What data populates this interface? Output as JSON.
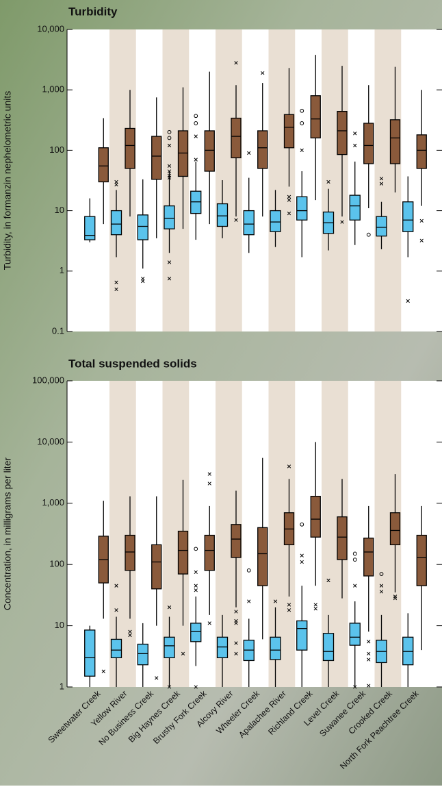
{
  "chart_data": [
    {
      "type": "box",
      "title": "Turbidity",
      "y_label": "Turbidity, in formanzin nephelometric units",
      "log_scale": true,
      "ylim": [
        0.1,
        10000
      ],
      "yticks": [
        0.1,
        1,
        10,
        100,
        {
          "value": 1000,
          "label": "1,000"
        },
        {
          "value": 10000,
          "label": "10,000"
        }
      ],
      "band_color": "#e9dfd3",
      "series": [
        {
          "color": "#5bc3ec",
          "boxes": [
            {
              "low": 3,
              "q1": 3.3,
              "median": 3.9,
              "q3": 8,
              "high": 16
            },
            {
              "low": 1.7,
              "q1": 4,
              "median": 6,
              "q3": 10,
              "high": 22,
              "outliers_x": [
                30,
                27,
                0.65,
                0.5
              ]
            },
            {
              "low": 1.1,
              "q1": 3.3,
              "median": 5.5,
              "q3": 8.5,
              "high": 33,
              "outliers_x": [
                0.75,
                0.68
              ]
            },
            {
              "low": 2,
              "q1": 5,
              "median": 7.5,
              "q3": 12,
              "high": 45,
              "outliers_o": [
                200,
                160
              ],
              "outliers_x": [
                120,
                55,
                45,
                38,
                35,
                1.4,
                0.75
              ]
            },
            {
              "low": 3.3,
              "q1": 9,
              "median": 14,
              "q3": 21,
              "high": 65,
              "outliers_o": [
                370,
                280
              ],
              "outliers_x": [
                170,
                70
              ]
            },
            {
              "low": 3.5,
              "q1": 5.5,
              "median": 8.2,
              "q3": 13,
              "high": 32
            },
            {
              "low": 2,
              "q1": 4,
              "median": 6,
              "q3": 10,
              "high": 35,
              "outliers_x": [
                90
              ]
            },
            {
              "low": 2.5,
              "q1": 4.5,
              "median": 6.5,
              "q3": 10,
              "high": 22
            },
            {
              "low": 1.7,
              "q1": 7,
              "median": 10,
              "q3": 17,
              "high": 45,
              "outliers_o": [
                450,
                280
              ],
              "outliers_x": [
                100
              ]
            },
            {
              "low": 2.2,
              "q1": 4.2,
              "median": 6.3,
              "q3": 9.5,
              "high": 23,
              "outliers_x": [
                30
              ]
            },
            {
              "low": 2.7,
              "q1": 7,
              "median": 12,
              "q3": 18,
              "high": 65,
              "outliers_x": [
                190,
                120
              ]
            },
            {
              "low": 2.3,
              "q1": 3.8,
              "median": 5.3,
              "q3": 8,
              "high": 14,
              "outliers_x": [
                34,
                28
              ]
            },
            {
              "low": 1.7,
              "q1": 4.5,
              "median": 7,
              "q3": 14,
              "high": 37,
              "outliers_x": [
                0.32
              ]
            }
          ]
        },
        {
          "color": "#8a5a3b",
          "boxes": [
            {
              "low": 6,
              "q1": 30,
              "median": 55,
              "q3": 110,
              "high": 340
            },
            {
              "low": 8,
              "q1": 50,
              "median": 120,
              "q3": 230,
              "high": 1000
            },
            {
              "low": 3.5,
              "q1": 33,
              "median": 80,
              "q3": 170,
              "high": 750
            },
            {
              "low": 5,
              "q1": 37,
              "median": 90,
              "q3": 210,
              "high": 1100
            },
            {
              "low": 6,
              "q1": 45,
              "median": 100,
              "q3": 210,
              "high": 2000
            },
            {
              "low": 8,
              "q1": 75,
              "median": 170,
              "q3": 340,
              "high": 1200,
              "outliers_x": [
                2800,
                7
              ]
            },
            {
              "low": 8,
              "q1": 50,
              "median": 110,
              "q3": 210,
              "high": 1300,
              "outliers_x": [
                1900
              ]
            },
            {
              "low": 25,
              "q1": 110,
              "median": 240,
              "q3": 390,
              "high": 2300,
              "outliers_x": [
                17,
                15,
                9
              ]
            },
            {
              "low": 15,
              "q1": 160,
              "median": 330,
              "q3": 800,
              "high": 3800
            },
            {
              "low": 8,
              "q1": 85,
              "median": 210,
              "q3": 440,
              "high": 2500,
              "outliers_x": [
                6.5
              ]
            },
            {
              "low": 11,
              "q1": 60,
              "median": 120,
              "q3": 280,
              "high": 1200,
              "outliers_o": [
                4
              ]
            },
            {
              "low": 20,
              "q1": 60,
              "median": 160,
              "q3": 320,
              "high": 2400
            },
            {
              "low": 12,
              "q1": 50,
              "median": 100,
              "q3": 180,
              "high": 1000,
              "outliers_x": [
                6.8,
                3.2
              ]
            }
          ]
        }
      ]
    },
    {
      "type": "box",
      "title": "Total suspended solids",
      "y_label": "Concentration, in milligrams per liter",
      "log_scale": true,
      "ylim": [
        1,
        100000
      ],
      "yticks": [
        1,
        10,
        100,
        {
          "value": 1000,
          "label": "1,000"
        },
        {
          "value": 10000,
          "label": "10,000"
        },
        {
          "value": 100000,
          "label": "100,000"
        }
      ],
      "band_color": "#e9dfd3",
      "categories": [
        "Sweetwater Creek",
        "Yellow River",
        "No Business Creek",
        "Big Haynes Creek",
        "Brushy Fork Creek",
        "Alcovy River",
        "Wheeler Creek",
        "Apalachee River",
        "Richland Creek",
        "Level Creek",
        "Suwanee Creek",
        "Crooked Creek",
        "North Fork Peachtree Creek"
      ],
      "series": [
        {
          "color": "#5bc3ec",
          "boxes": [
            {
              "low": 1,
              "q1": 1.5,
              "median": 3,
              "q3": 8.5,
              "high": 10
            },
            {
              "low": 1,
              "q1": 3,
              "median": 4,
              "q3": 6,
              "high": 14,
              "outliers_x": [
                45,
                18
              ]
            },
            {
              "low": 1,
              "q1": 2.3,
              "median": 3.5,
              "q3": 5,
              "high": 11
            },
            {
              "low": 1,
              "q1": 3,
              "median": 4.7,
              "q3": 6.5,
              "high": 14,
              "outliers_x": [
                20,
                1
              ]
            },
            {
              "low": 2.2,
              "q1": 5.5,
              "median": 8,
              "q3": 11,
              "high": 30,
              "outliers_o": [
                180
              ],
              "outliers_x": [
                75,
                45,
                38,
                1
              ]
            },
            {
              "low": 1,
              "q1": 3,
              "median": 4.5,
              "q3": 6.5,
              "high": 15
            },
            {
              "low": 1,
              "q1": 2.7,
              "median": 4,
              "q3": 5.8,
              "high": 13,
              "outliers_o": [
                80
              ],
              "outliers_x": [
                25
              ]
            },
            {
              "low": 1,
              "q1": 2.8,
              "median": 4,
              "q3": 6.5,
              "high": 20,
              "outliers_x": [
                25
              ]
            },
            {
              "low": 1,
              "q1": 4,
              "median": 9,
              "q3": 12,
              "high": 45,
              "outliers_o": [
                450
              ],
              "outliers_x": [
                140,
                110
              ]
            },
            {
              "low": 1,
              "q1": 2.7,
              "median": 3.8,
              "q3": 7.5,
              "high": 15,
              "outliers_x": [
                55
              ]
            },
            {
              "low": 1,
              "q1": 4.8,
              "median": 6.5,
              "q3": 11,
              "high": 25,
              "outliers_o": [
                150,
                120
              ],
              "outliers_x": [
                45,
                1
              ]
            },
            {
              "low": 1,
              "q1": 2.5,
              "median": 3.8,
              "q3": 5.8,
              "high": 15,
              "outliers_o": [
                70
              ],
              "outliers_x": [
                45,
                36
              ]
            },
            {
              "low": 1,
              "q1": 2.3,
              "median": 3.8,
              "q3": 6.5,
              "high": 16
            }
          ]
        },
        {
          "color": "#8a5a3b",
          "boxes": [
            {
              "low": 13,
              "q1": 50,
              "median": 120,
              "q3": 290,
              "high": 1100,
              "outliers_x": [
                1.8
              ]
            },
            {
              "low": 13,
              "q1": 80,
              "median": 160,
              "q3": 300,
              "high": 1300,
              "outliers_x": [
                8,
                7
              ]
            },
            {
              "low": 10,
              "q1": 40,
              "median": 110,
              "q3": 210,
              "high": 1300,
              "outliers_x": [
                1.4
              ]
            },
            {
              "low": 10,
              "q1": 70,
              "median": 170,
              "q3": 350,
              "high": 2400,
              "outliers_x": [
                3.5
              ]
            },
            {
              "low": 15,
              "q1": 80,
              "median": 170,
              "q3": 300,
              "high": 900,
              "outliers_x": [
                3000,
                2100,
                11
              ]
            },
            {
              "low": 20,
              "q1": 130,
              "median": 260,
              "q3": 450,
              "high": 1600,
              "outliers_x": [
                17,
                12,
                11,
                5.2,
                3.5
              ]
            },
            {
              "low": 6,
              "q1": 45,
              "median": 150,
              "q3": 400,
              "high": 5500
            },
            {
              "low": 30,
              "q1": 210,
              "median": 380,
              "q3": 700,
              "high": 2500,
              "outliers_x": [
                4000,
                22,
                18
              ]
            },
            {
              "low": 45,
              "q1": 280,
              "median": 550,
              "q3": 1300,
              "high": 10000,
              "outliers_x": [
                22,
                19
              ]
            },
            {
              "low": 28,
              "q1": 120,
              "median": 280,
              "q3": 600,
              "high": 2500
            },
            {
              "low": 8,
              "q1": 65,
              "median": 160,
              "q3": 270,
              "high": 900,
              "outliers_x": [
                5.5,
                3.5,
                2.8,
                1.05
              ]
            },
            {
              "low": 35,
              "q1": 210,
              "median": 360,
              "q3": 700,
              "high": 3000,
              "outliers_x": [
                30,
                28
              ]
            },
            {
              "low": 4,
              "q1": 45,
              "median": 130,
              "q3": 300,
              "high": 900
            }
          ]
        }
      ]
    }
  ]
}
